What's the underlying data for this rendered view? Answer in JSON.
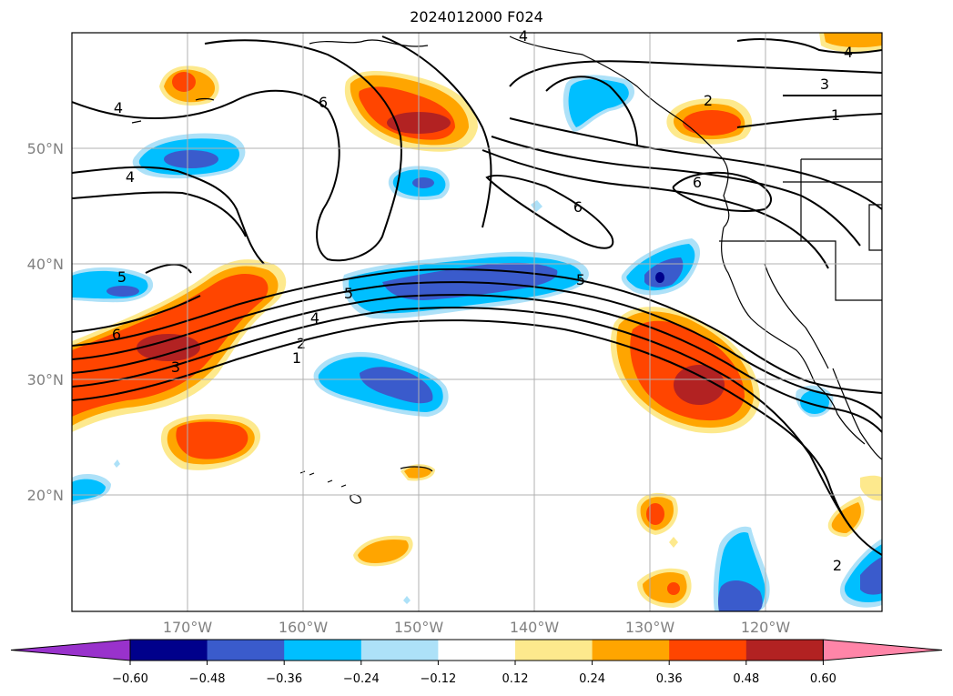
{
  "title": "2024012000 F024",
  "map": {
    "lat_labels": [
      "50°N",
      "40°N",
      "30°N",
      "20°N"
    ],
    "lon_labels": [
      "170°W",
      "160°W",
      "150°W",
      "140°W",
      "130°W",
      "120°W"
    ],
    "grid": true
  },
  "contour_labels": [
    "4",
    "4",
    "6",
    "5",
    "6",
    "3",
    "4",
    "2",
    "1",
    "5",
    "6",
    "4",
    "2",
    "3",
    "1",
    "6",
    "2",
    "4",
    "2"
  ],
  "colorbar": {
    "ticks": [
      "−0.60",
      "−0.48",
      "−0.36",
      "−0.24",
      "−0.12",
      "0.12",
      "0.24",
      "0.36",
      "0.48",
      "0.60"
    ],
    "colors": [
      "#9932CC",
      "#00008B",
      "#3A5BCC",
      "#00BFFF",
      "#ADE1F8",
      "#FFFFFF",
      "#FDE98D",
      "#FFA500",
      "#FF4500",
      "#B22222",
      "#FF85A8"
    ],
    "extend": "both"
  },
  "chart_data": {
    "type": "contour",
    "title": "2024012000 F024",
    "xlabel": "",
    "ylabel": "",
    "xlim": [
      "180°W",
      "110°W"
    ],
    "ylim": [
      "10°N",
      "60°N"
    ],
    "levels": [
      -0.6,
      -0.48,
      -0.36,
      -0.24,
      -0.12,
      0.12,
      0.24,
      0.36,
      0.48,
      0.6
    ],
    "contour_line_values": [
      1,
      2,
      3,
      4,
      5,
      6
    ]
  }
}
